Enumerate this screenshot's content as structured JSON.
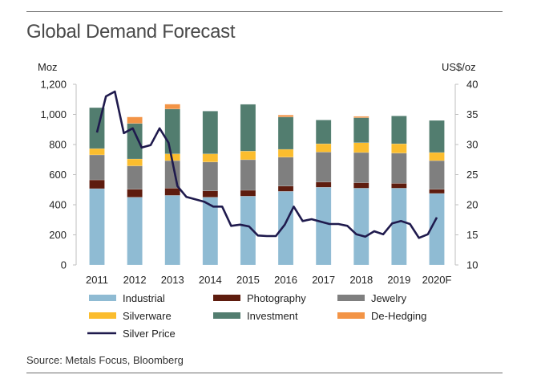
{
  "title": "Global Demand Forecast",
  "source": "Source: Metals Focus, Bloomberg",
  "chart_data": {
    "type": "bar",
    "stacked": true,
    "title": "Global Demand Forecast",
    "categories": [
      "2011",
      "2012",
      "2013",
      "2014",
      "2015",
      "2016",
      "2017",
      "2018",
      "2019",
      "2020F"
    ],
    "left_axis": {
      "label": "Moz",
      "range": [
        0,
        1200
      ],
      "ticks": [
        0,
        200,
        400,
        600,
        800,
        1000,
        1200
      ],
      "tick_labels": [
        "0",
        "200",
        "400",
        "600",
        "800",
        "1,000",
        "1,200"
      ]
    },
    "right_axis": {
      "label": "US$/oz",
      "range": [
        10,
        40
      ],
      "ticks": [
        10,
        15,
        20,
        25,
        30,
        35,
        40
      ],
      "tick_labels": [
        "10",
        "15",
        "20",
        "25",
        "30",
        "35",
        "40"
      ]
    },
    "grid": false,
    "legend_position": "bottom",
    "series": [
      {
        "name": "Industrial",
        "color": "#8fbbd3",
        "values": [
          507,
          450,
          462,
          450,
          457,
          489,
          516,
          510,
          510,
          475
        ]
      },
      {
        "name": "Photography",
        "color": "#5e1c0e",
        "values": [
          58,
          53,
          48,
          42,
          39,
          35,
          35,
          36,
          32,
          28
        ]
      },
      {
        "name": "Jewelry",
        "color": "#7f7f7f",
        "values": [
          166,
          155,
          183,
          192,
          203,
          192,
          199,
          201,
          201,
          190
        ]
      },
      {
        "name": "Silverware",
        "color": "#fbbd2e",
        "values": [
          42,
          46,
          45,
          54,
          57,
          52,
          55,
          65,
          62,
          54
        ]
      },
      {
        "name": "Investment",
        "color": "#527d6f",
        "values": [
          272,
          236,
          298,
          284,
          311,
          215,
          158,
          166,
          185,
          213
        ]
      },
      {
        "name": "De-Hedging",
        "color": "#f39446",
        "values": [
          0,
          43,
          32,
          0,
          0,
          13,
          0,
          9,
          0,
          0
        ]
      }
    ],
    "line_series": {
      "name": "Silver Price",
      "color": "#1f1a4d",
      "axis": "right",
      "x_start": "2011",
      "x_end": "2020F",
      "values": [
        32.0,
        38.0,
        38.8,
        31.9,
        32.7,
        29.5,
        29.9,
        32.7,
        30.3,
        23.1,
        21.3,
        20.9,
        20.5,
        19.7,
        19.7,
        16.5,
        16.7,
        16.4,
        14.9,
        14.8,
        14.8,
        16.7,
        19.7,
        17.3,
        17.6,
        17.2,
        16.8,
        16.8,
        16.5,
        15.1,
        14.7,
        15.6,
        15.1,
        16.9,
        17.3,
        16.8,
        14.5,
        15.1,
        17.9
      ]
    },
    "legend": [
      {
        "name": "Industrial",
        "type": "box",
        "color": "#8fbbd3"
      },
      {
        "name": "Photography",
        "type": "box",
        "color": "#5e1c0e"
      },
      {
        "name": "Jewelry",
        "type": "box",
        "color": "#7f7f7f"
      },
      {
        "name": "Silverware",
        "type": "box",
        "color": "#fbbd2e"
      },
      {
        "name": "Investment",
        "type": "box",
        "color": "#527d6f"
      },
      {
        "name": "De-Hedging",
        "type": "box",
        "color": "#f39446"
      },
      {
        "name": "Silver Price",
        "type": "line",
        "color": "#1f1a4d"
      }
    ]
  }
}
